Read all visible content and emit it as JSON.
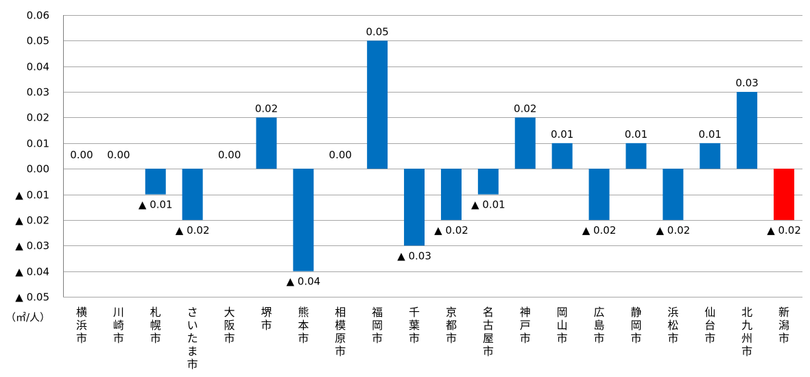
{
  "chart_data": {
    "type": "bar",
    "unit_label": "（㎡/人）",
    "categories": [
      "横浜市",
      "川崎市",
      "札幌市",
      "さいたま市",
      "大阪市",
      "堺市",
      "熊本市",
      "相模原市",
      "福岡市",
      "千葉市",
      "京都市",
      "名古屋市",
      "神戸市",
      "岡山市",
      "広島市",
      "静岡市",
      "浜松市",
      "仙台市",
      "北九州市",
      "新潟市"
    ],
    "values": [
      0.0,
      0.0,
      -0.01,
      -0.02,
      0.0,
      0.02,
      -0.04,
      0.0,
      0.05,
      -0.03,
      -0.02,
      -0.01,
      0.02,
      0.01,
      -0.02,
      0.01,
      -0.02,
      0.01,
      0.03,
      -0.02
    ],
    "data_labels": [
      "0.00",
      "0.00",
      "▲ 0.01",
      "▲ 0.02",
      "0.00",
      "0.02",
      "▲ 0.04",
      "0.00",
      "0.05",
      "▲ 0.03",
      "▲ 0.02",
      "▲ 0.01",
      "0.02",
      "0.01",
      "▲ 0.02",
      "0.01",
      "▲ 0.02",
      "0.01",
      "0.03",
      "▲ 0.02"
    ],
    "ylim": [
      -0.05,
      0.06
    ],
    "y_ticks": [
      0.06,
      0.05,
      0.04,
      0.03,
      0.02,
      0.01,
      0.0,
      -0.01,
      -0.02,
      -0.03,
      -0.04,
      -0.05
    ],
    "y_tick_labels": [
      "0.06",
      "0.05",
      "0.04",
      "0.03",
      "0.02",
      "0.01",
      "0.00",
      "▲ 0.01",
      "▲ 0.02",
      "▲ 0.03",
      "▲ 0.04",
      "▲ 0.05"
    ],
    "grid": true,
    "colors": {
      "default": "#0070c0",
      "highlight": "#ff0000"
    },
    "highlight_category": "新潟市"
  }
}
